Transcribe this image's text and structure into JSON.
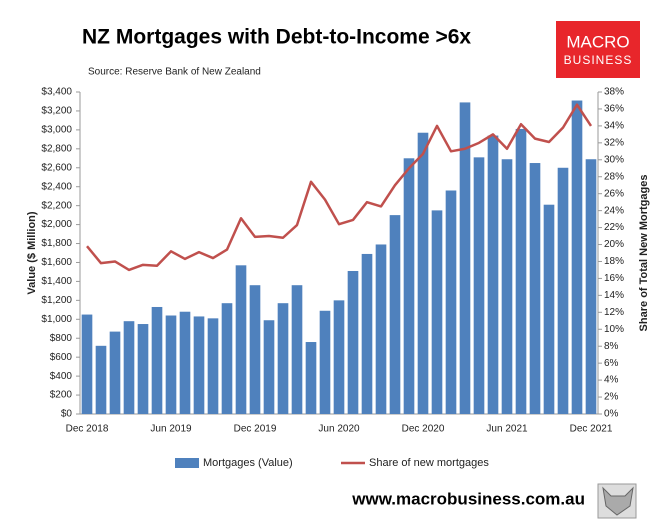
{
  "chart_data": {
    "type": "combo",
    "title": "NZ Mortgages with Debt-to-Income >6x",
    "subtitle": "Source: Reserve Bank of New Zealand",
    "y_label": "Value ($ Million)",
    "y2_label": "Share of Total New Mortgages",
    "categories": [
      "Dec 2018",
      null,
      null,
      null,
      null,
      null,
      "Jun 2019",
      null,
      null,
      null,
      null,
      null,
      "Dec 2019",
      null,
      null,
      null,
      null,
      null,
      "Jun 2020",
      null,
      null,
      null,
      null,
      null,
      "Dec 2020",
      null,
      null,
      null,
      null,
      null,
      "Jun 2021",
      null,
      null,
      null,
      null,
      null,
      "Dec 2021"
    ],
    "series": [
      {
        "name": "Mortgages (Value)",
        "type": "bar",
        "color": "#4f81bd",
        "values": [
          1050,
          720,
          870,
          980,
          950,
          1130,
          1040,
          1080,
          1030,
          1010,
          1170,
          1570,
          1360,
          990,
          1170,
          1360,
          760,
          1090,
          1200,
          1510,
          1690,
          1790,
          2100,
          2700,
          2970,
          2150,
          2360,
          3290,
          2710,
          2940,
          2690,
          3010,
          2650,
          2210,
          2600,
          3310,
          2690
        ]
      },
      {
        "name": "Share of new mortgages",
        "type": "line",
        "color": "#c0504d",
        "axis": "y2",
        "values": [
          19.8,
          17.8,
          18.0,
          17.0,
          17.6,
          17.5,
          19.2,
          18.3,
          19.1,
          18.4,
          19.4,
          23.1,
          20.9,
          21.0,
          20.8,
          22.3,
          27.4,
          25.3,
          22.4,
          22.9,
          25.0,
          24.5,
          27.0,
          29.0,
          30.7,
          34.0,
          31.0,
          31.3,
          32.0,
          33.0,
          31.3,
          34.2,
          32.5,
          32.1,
          33.8,
          36.5,
          34.0
        ]
      }
    ],
    "ylim": [
      0,
      3400
    ],
    "yticks": [
      {
        "value": 0,
        "label": "$0"
      },
      {
        "value": 200,
        "label": "$200"
      },
      {
        "value": 400,
        "label": "$400"
      },
      {
        "value": 600,
        "label": "$600"
      },
      {
        "value": 800,
        "label": "$800"
      },
      {
        "value": 1000,
        "label": "$1,000"
      },
      {
        "value": 1200,
        "label": "$1,200"
      },
      {
        "value": 1400,
        "label": "$1,400"
      },
      {
        "value": 1600,
        "label": "$1,600"
      },
      {
        "value": 1800,
        "label": "$1,800"
      },
      {
        "value": 2000,
        "label": "$2,000"
      },
      {
        "value": 2200,
        "label": "$2,200"
      },
      {
        "value": 2400,
        "label": "$2,400"
      },
      {
        "value": 2600,
        "label": "$2,600"
      },
      {
        "value": 2800,
        "label": "$2,800"
      },
      {
        "value": 3000,
        "label": "$3,000"
      },
      {
        "value": 3200,
        "label": "$3,200"
      },
      {
        "value": 3400,
        "label": "$3,400"
      }
    ],
    "y2lim": [
      0,
      38
    ],
    "y2ticks": [
      {
        "value": 0,
        "label": "0%"
      },
      {
        "value": 2,
        "label": "2%"
      },
      {
        "value": 4,
        "label": "4%"
      },
      {
        "value": 6,
        "label": "6%"
      },
      {
        "value": 8,
        "label": "8%"
      },
      {
        "value": 10,
        "label": "10%"
      },
      {
        "value": 12,
        "label": "12%"
      },
      {
        "value": 14,
        "label": "14%"
      },
      {
        "value": 16,
        "label": "16%"
      },
      {
        "value": 18,
        "label": "18%"
      },
      {
        "value": 20,
        "label": "20%"
      },
      {
        "value": 22,
        "label": "22%"
      },
      {
        "value": 24,
        "label": "24%"
      },
      {
        "value": 26,
        "label": "26%"
      },
      {
        "value": 28,
        "label": "28%"
      },
      {
        "value": 30,
        "label": "30%"
      },
      {
        "value": 32,
        "label": "32%"
      },
      {
        "value": 34,
        "label": "34%"
      },
      {
        "value": 36,
        "label": "36%"
      },
      {
        "value": 38,
        "label": "38%"
      }
    ],
    "grid": false,
    "legend": "bottom"
  },
  "logo": {
    "line1": "MACRO",
    "line2": "BUSINESS"
  },
  "footer": "www.macrobusiness.com.au"
}
